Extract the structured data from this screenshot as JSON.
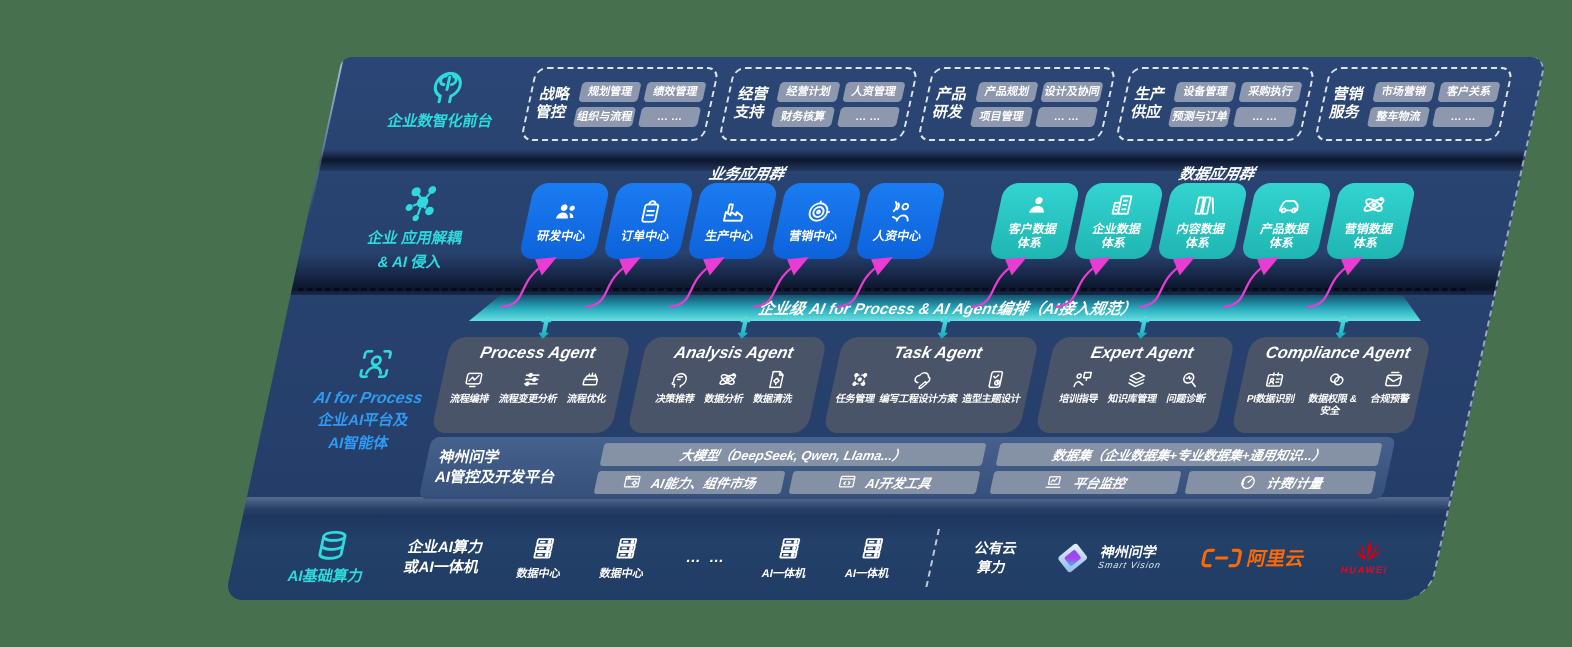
{
  "palette": {
    "background_green": "#47704F",
    "navy": "#27416E",
    "teal_accent": "#2EDADD",
    "blue_box": "#1273E8",
    "teal_box": "#2BC9C5",
    "magenta_arrow": "#E93CD3",
    "bar_teal_gradient": [
      "#14516F",
      "#2BAEC0",
      "#66E0DF"
    ],
    "agent_card_gray": "#4C5568",
    "aliyun_orange": "#FF6A00",
    "huawei_red": "#D7000F",
    "section_blue_text": "#2F9BF2"
  },
  "front_office": {
    "label": "企业数智化前台",
    "icon": "brain-head-icon",
    "groups": [
      {
        "label": "战略管控",
        "chips": [
          "规划管理",
          "绩效管理",
          "组织与流程",
          "… …"
        ]
      },
      {
        "label": "经营支持",
        "chips": [
          "经营计划",
          "人资管理",
          "财务核算",
          "… …"
        ]
      },
      {
        "label": "产品研发",
        "chips": [
          "产品规划",
          "设计及协同",
          "项目管理",
          "… …"
        ]
      },
      {
        "label": "生产供应",
        "chips": [
          "设备管理",
          "采购执行",
          "预测与订单",
          "… …"
        ]
      },
      {
        "label": "营销服务",
        "chips": [
          "市场营销",
          "客户关系",
          "整车物流",
          "… …"
        ]
      }
    ]
  },
  "app_layer": {
    "icon": "molecule-icon",
    "label_line1": "企业 应用解耦",
    "label_line2": "& AI 侵入",
    "business_group_title": "业务应用群",
    "data_group_title": "数据应用群",
    "business_boxes": [
      {
        "label": "研发中心",
        "icon": "team-icon"
      },
      {
        "label": "订单中心",
        "icon": "clipboard-icon"
      },
      {
        "label": "生产中心",
        "icon": "factory-icon"
      },
      {
        "label": "营销中心",
        "icon": "target-icon"
      },
      {
        "label": "人资中心",
        "icon": "person-network-icon"
      }
    ],
    "data_boxes": [
      {
        "label": "客户数据体系",
        "icon": "user-icon"
      },
      {
        "label": "企业数据体系",
        "icon": "building-icon"
      },
      {
        "label": "内容数据体系",
        "icon": "books-icon"
      },
      {
        "label": "产品数据体系",
        "icon": "car-icon"
      },
      {
        "label": "营销数据体系",
        "icon": "atom-icon"
      }
    ]
  },
  "orchestration": {
    "label": "企业级 AI for Process & AI Agent编排（AI接入规范）"
  },
  "agents": {
    "section_icon": "person-scan-icon",
    "section_title": "AI for Process",
    "section_sub_line1": "企业AI平台及",
    "section_sub_line2": "AI智能体",
    "cards": [
      {
        "title": "Process Agent",
        "items": [
          {
            "label": "流程编排",
            "icon": "monitor-chart-icon"
          },
          {
            "label": "流程变更分析",
            "icon": "sliders-icon"
          },
          {
            "label": "流程优化",
            "icon": "machine-icon"
          }
        ]
      },
      {
        "title": "Analysis Agent",
        "items": [
          {
            "label": "决策推荐",
            "icon": "head-chat-icon"
          },
          {
            "label": "数据分析",
            "icon": "atom-icon"
          },
          {
            "label": "数据清洗",
            "icon": "doc-gear-icon"
          }
        ]
      },
      {
        "title": "Task Agent",
        "items": [
          {
            "label": "任务管理",
            "icon": "task-grid-icon"
          },
          {
            "label": "编写工程设计方案",
            "icon": "cloud-pen-icon"
          },
          {
            "label": "造型主题设计",
            "icon": "tablet-check-icon"
          }
        ]
      },
      {
        "title": "Expert Agent",
        "items": [
          {
            "label": "培训指导",
            "icon": "training-icon"
          },
          {
            "label": "知识库管理",
            "icon": "layers-icon"
          },
          {
            "label": "问题诊断",
            "icon": "diagnose-icon"
          }
        ]
      },
      {
        "title": "Compliance Agent",
        "items": [
          {
            "label": "PI数据识别",
            "icon": "id-card-icon"
          },
          {
            "label": "数据权限 & 安全",
            "icon": "data-lock-icon"
          },
          {
            "label": "合规预警",
            "icon": "mail-alert-icon"
          }
        ]
      }
    ]
  },
  "platform": {
    "label_line1": "神州问学",
    "label_line2": "AI管控及开发平台",
    "models_bar": "大模型（DeepSeek, Qwen, Llama...）",
    "capability_bar": {
      "label": "AI能力、组件市场",
      "icon": "window-gear-icon"
    },
    "devtools_bar": {
      "label": "AI开发工具",
      "icon": "window-code-icon"
    },
    "dataset_bar": "数据集（企业数据集+专业数据集+通用知识...）",
    "monitor_bar": {
      "label": "平台监控",
      "icon": "laptop-icon"
    },
    "billing_bar": {
      "label": "计费/计量",
      "icon": "gauge-icon"
    }
  },
  "compute": {
    "label": "AI基础算力",
    "icon": "database-icon",
    "text_line1": "企业AI算力",
    "text_line2": "或AI一体机",
    "servers": [
      {
        "label": "数据中心",
        "icon": "server-icon"
      },
      {
        "label": "数据中心",
        "icon": "server-icon"
      }
    ],
    "dots": "… …",
    "appliances": [
      {
        "label": "AI一体机",
        "icon": "server-icon"
      },
      {
        "label": "AI一体机",
        "icon": "server-icon"
      }
    ],
    "public_cloud_line1": "公有云",
    "public_cloud_line2": "算力",
    "partners": [
      {
        "name": "神州问学",
        "sub": "Smart Vision",
        "icon": "smart-vision-logo"
      },
      {
        "name": "阿里云",
        "icon": "aliyun-logo"
      },
      {
        "name": "HUAWEI",
        "icon": "huawei-logo"
      }
    ]
  }
}
